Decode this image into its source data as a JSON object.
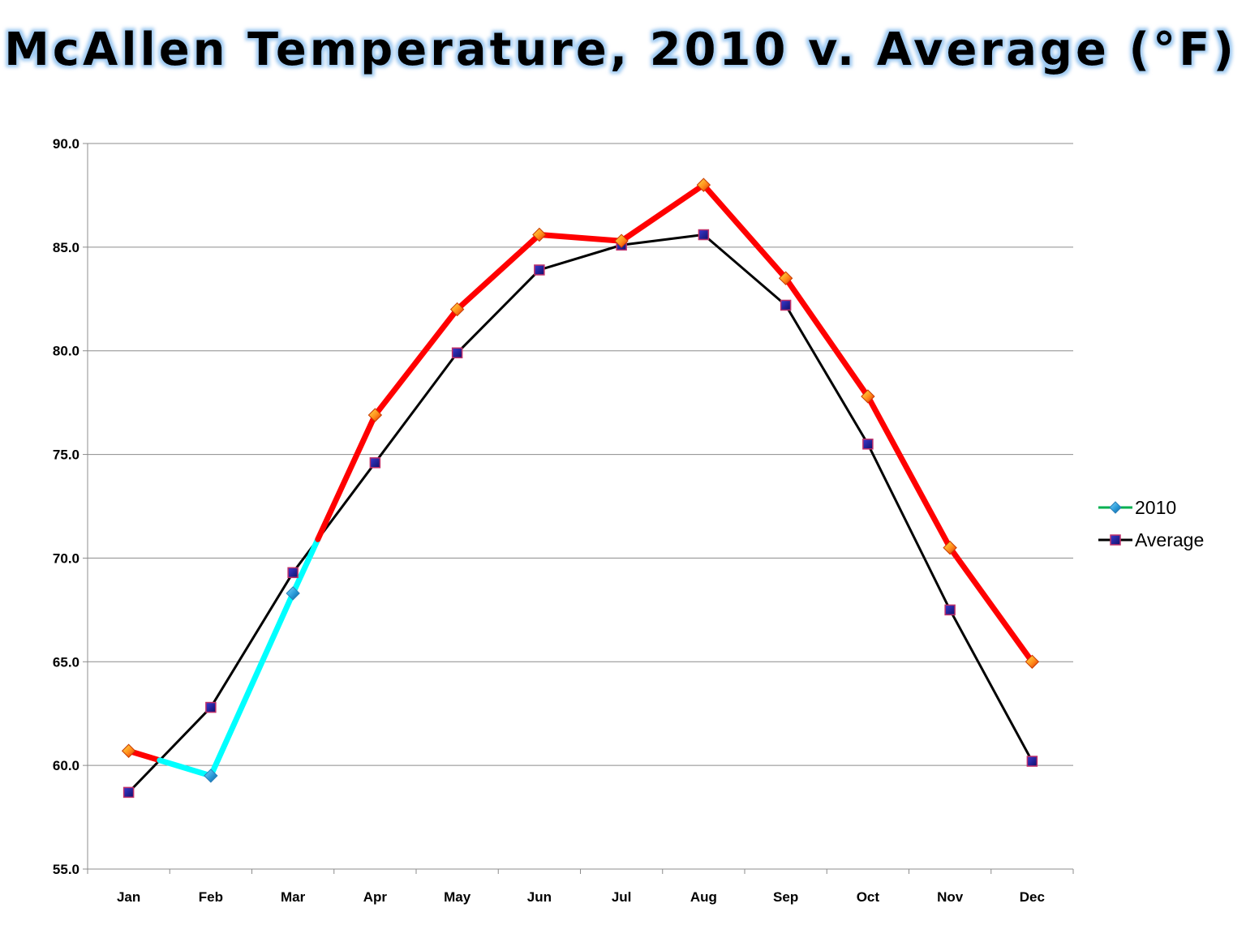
{
  "chart_data": {
    "type": "line",
    "title": "McAllen Temperature, 2010 v. Average (°F)",
    "xlabel": "",
    "ylabel": "",
    "categories": [
      "Jan",
      "Feb",
      "Mar",
      "Apr",
      "May",
      "Jun",
      "Jul",
      "Aug",
      "Sep",
      "Oct",
      "Nov",
      "Dec"
    ],
    "ylim": [
      55,
      90
    ],
    "yticks": [
      55,
      60,
      65,
      70,
      75,
      80,
      85,
      90
    ],
    "ytick_labels": [
      "55.0",
      "60.0",
      "65.0",
      "70.0",
      "75.0",
      "80.0",
      "85.0",
      "90.0"
    ],
    "grid": true,
    "legend": "right",
    "series": [
      {
        "name": "2010",
        "values": [
          60.7,
          59.5,
          68.3,
          76.9,
          82.0,
          85.6,
          85.3,
          88.0,
          83.5,
          77.8,
          70.5,
          65.0
        ],
        "marker": "diamond",
        "legend_color": "#00b050",
        "color_below_average": "#00ffff",
        "color_above_average": "#ff0000"
      },
      {
        "name": "Average",
        "values": [
          58.7,
          62.8,
          69.3,
          74.6,
          79.9,
          83.9,
          85.1,
          85.6,
          82.2,
          75.5,
          67.5,
          60.2
        ],
        "marker": "square",
        "color": "#000000",
        "marker_fill": "#1a1aa0",
        "marker_edge": "#c0306a"
      }
    ]
  }
}
